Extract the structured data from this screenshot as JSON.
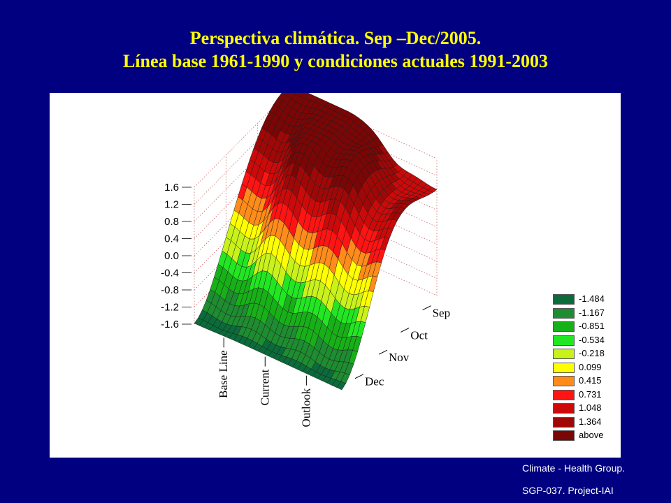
{
  "slide": {
    "title_line1": "Perspectiva climática. Sep –Dec/2005.",
    "title_line2": "Línea base 1961-1990  y condiciones actuales 1991-2003",
    "credit_line1": "Climate - Health Group.",
    "credit_line2": "SGP-037. Project-IAI"
  },
  "chart_data": {
    "type": "surface3d",
    "z_ticks": [
      "1.6",
      "1.2",
      "0.8",
      "0.4",
      "0.0",
      "-0.4",
      "-0.8",
      "-1.2",
      "-1.6"
    ],
    "zlim": [
      -1.6,
      1.6
    ],
    "x_categories": [
      "Base Line",
      "Current",
      "Outlook"
    ],
    "y_categories": [
      "Sep",
      "Oct",
      "Nov",
      "Dec"
    ],
    "grid": true,
    "legend_position": "right",
    "legend": [
      {
        "label": "-1.484",
        "color": "#0B6B3A"
      },
      {
        "label": "-1.167",
        "color": "#1E8C30"
      },
      {
        "label": "-0.851",
        "color": "#18B018"
      },
      {
        "label": "-0.534",
        "color": "#22E622"
      },
      {
        "label": "-0.218",
        "color": "#C8F21A"
      },
      {
        "label": "0.099",
        "color": "#FFFF00"
      },
      {
        "label": "0.415",
        "color": "#FF8C1A"
      },
      {
        "label": "0.731",
        "color": "#FF1414"
      },
      {
        "label": "1.048",
        "color": "#CC0A0A"
      },
      {
        "label": "1.364",
        "color": "#A00808"
      },
      {
        "label": "above",
        "color": "#7A0606"
      }
    ]
  }
}
